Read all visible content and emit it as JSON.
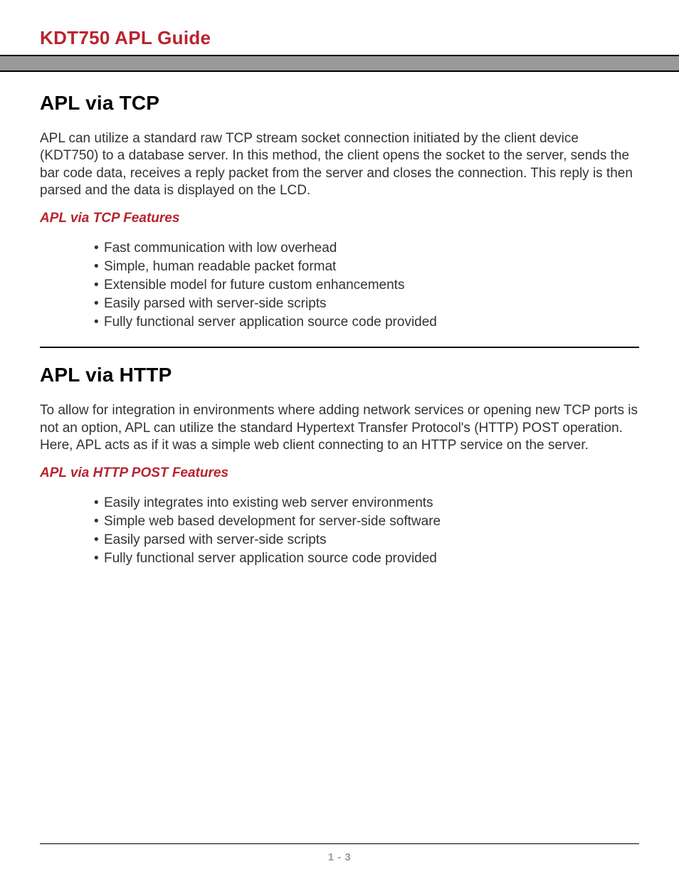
{
  "header": {
    "title": "KDT750 APL Guide"
  },
  "colors": {
    "accent": "#b8232f",
    "header_bar": "#9a9a9a",
    "rule": "#000000",
    "text": "#333333",
    "page_num": "#9a9a9a",
    "background": "#ffffff"
  },
  "typography": {
    "doc_title_pt": 26,
    "section_heading_pt": 28,
    "sub_heading_pt": 19,
    "body_pt": 19,
    "page_num_pt": 15,
    "font_family": "Century Gothic"
  },
  "sections": {
    "tcp": {
      "heading": "APL via TCP",
      "body": "APL can utilize a standard raw TCP stream socket connection initiated by the client device (KDT750) to a database server. In this method, the client opens the socket to the server, sends the bar code data, receives a reply packet from the server and closes the connection. This reply is then parsed and the data is displayed on the LCD.",
      "features_heading": "APL via TCP Features",
      "features": [
        "Fast communication with low overhead",
        "Simple, human readable packet format",
        "Extensible model for future custom enhancements",
        "Easily parsed with server-side scripts",
        "Fully functional server application source code provided"
      ]
    },
    "http": {
      "heading": "APL via HTTP",
      "body": "To allow for integration in environments where adding network services or opening new TCP ports is not an option, APL can utilize the standard Hypertext Transfer Protocol's (HTTP) POST operation. Here, APL acts as if it was a simple web client connecting to an HTTP service on the server.",
      "features_heading": "APL via HTTP POST Features",
      "features": [
        "Easily integrates into existing web server environments",
        "Simple web based development for server-side software",
        "Easily parsed with server-side scripts",
        "Fully functional server application source code provided"
      ]
    }
  },
  "footer": {
    "page_number": "1 - 3"
  }
}
